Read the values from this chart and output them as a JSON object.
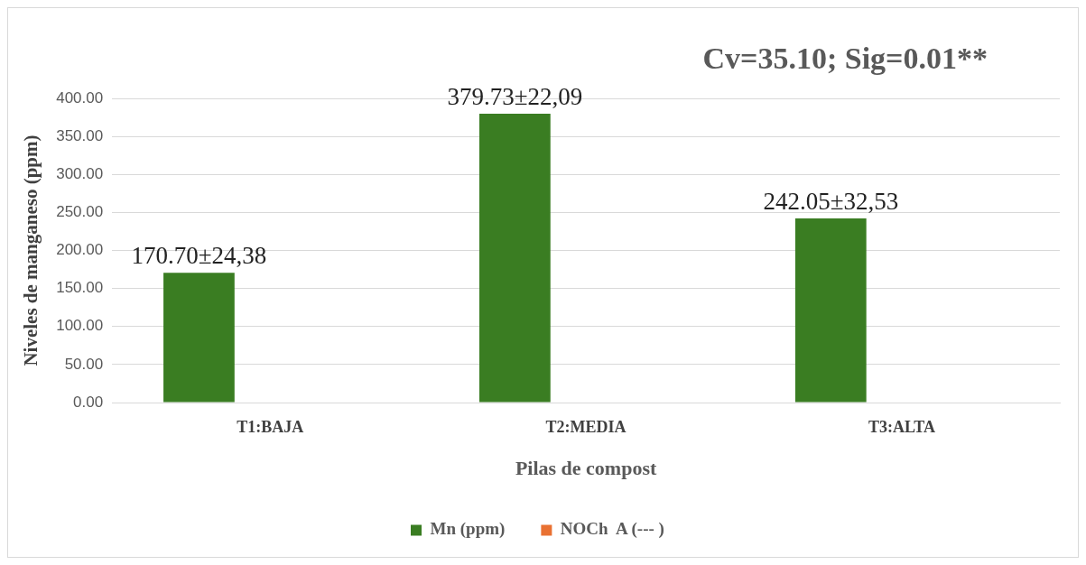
{
  "chart_data": {
    "type": "bar",
    "title": "Cv=35.10; Sig=0.01**",
    "xlabel": "Pilas de compost",
    "ylabel": "Niveles de manganeso (ppm)",
    "categories": [
      "T1:BAJA",
      "T2:MEDIA",
      "T3:ALTA"
    ],
    "series": [
      {
        "name": "Mn (ppm)",
        "color": "#3a7d22",
        "values": [
          170.7,
          379.73,
          242.05
        ],
        "value_labels": [
          "170.70±24,38",
          "379.73±22,09",
          "242.05±32,53"
        ]
      },
      {
        "name": "NOCh  A (--- )",
        "color": "#e97132",
        "values": [
          null,
          null,
          null
        ]
      }
    ],
    "ylim": [
      0,
      400
    ],
    "yticks": [
      {
        "value": 0,
        "label": "0.00"
      },
      {
        "value": 50,
        "label": "50.00"
      },
      {
        "value": 100,
        "label": "100.00"
      },
      {
        "value": 150,
        "label": "150.00"
      },
      {
        "value": 200,
        "label": "200.00"
      },
      {
        "value": 250,
        "label": "250.00"
      },
      {
        "value": 300,
        "label": "300.00"
      },
      {
        "value": 350,
        "label": "350.00"
      },
      {
        "value": 400,
        "label": "400.00"
      }
    ],
    "grid": "y",
    "legend": "bottom"
  }
}
